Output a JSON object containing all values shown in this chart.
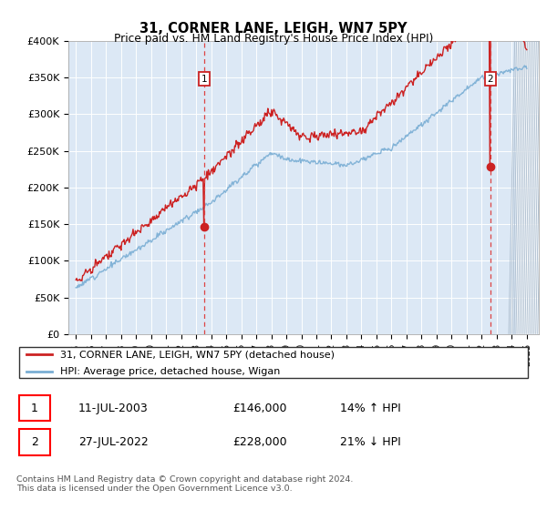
{
  "title": "31, CORNER LANE, LEIGH, WN7 5PY",
  "subtitle": "Price paid vs. HM Land Registry's House Price Index (HPI)",
  "ylim": [
    0,
    400000
  ],
  "yticks": [
    0,
    50000,
    100000,
    150000,
    200000,
    250000,
    300000,
    350000,
    400000
  ],
  "ytick_labels": [
    "£0",
    "£50K",
    "£100K",
    "£150K",
    "£200K",
    "£250K",
    "£300K",
    "£350K",
    "£400K"
  ],
  "bg_color": "#dce8f5",
  "line_color_hpi": "#7aaed4",
  "line_color_price": "#cc2222",
  "marker1_date": 2003.53,
  "marker1_value": 146000,
  "marker2_date": 2022.57,
  "marker2_value": 228000,
  "legend_label1": "31, CORNER LANE, LEIGH, WN7 5PY (detached house)",
  "legend_label2": "HPI: Average price, detached house, Wigan",
  "table_row1": [
    "1",
    "11-JUL-2003",
    "£146,000",
    "14% ↑ HPI"
  ],
  "table_row2": [
    "2",
    "27-JUL-2022",
    "£228,000",
    "21% ↓ HPI"
  ],
  "footer": "Contains HM Land Registry data © Crown copyright and database right 2024.\nThis data is licensed under the Open Government Licence v3.0."
}
